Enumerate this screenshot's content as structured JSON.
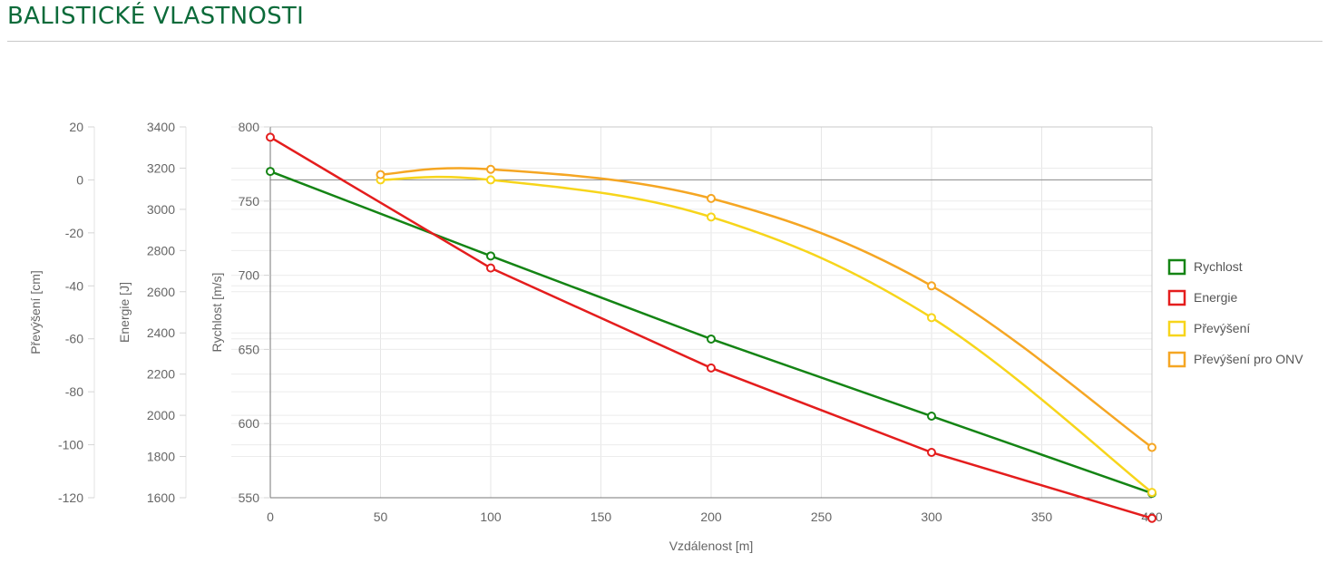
{
  "page": {
    "title": "BALISTICKÉ VLASTNOSTI"
  },
  "chart_data": {
    "type": "line",
    "title": "",
    "xlabel": "Vzdálenost [m]",
    "x_ticks": [
      0,
      50,
      100,
      150,
      200,
      250,
      300,
      350,
      400
    ],
    "xlim": [
      0,
      400
    ],
    "grid": true,
    "legend_position": "right",
    "axes": [
      {
        "id": "rychlost",
        "label": "Rychlost [m/s]",
        "min": 550,
        "max": 800,
        "ticks": [
          550,
          600,
          650,
          700,
          750,
          800
        ]
      },
      {
        "id": "energie",
        "label": "Energie [J]",
        "min": 1600,
        "max": 3400,
        "ticks": [
          1600,
          1800,
          2000,
          2200,
          2400,
          2600,
          2800,
          3000,
          3200,
          3400
        ]
      },
      {
        "id": "prevyseni",
        "label": "Převýšení [cm]",
        "min": -120,
        "max": 20,
        "ticks": [
          -120,
          -100,
          -80,
          -60,
          -40,
          -20,
          0,
          20
        ]
      }
    ],
    "series": [
      {
        "name": "Rychlost",
        "axis": "rychlost",
        "color": "#148414",
        "x": [
          0,
          100,
          200,
          300,
          400
        ],
        "y": [
          770,
          713,
          657,
          605,
          553
        ]
      },
      {
        "name": "Energie",
        "axis": "energie",
        "color": "#e41d1d",
        "x": [
          0,
          100,
          200,
          300,
          400
        ],
        "y": [
          3350,
          2715,
          2230,
          1820,
          1500
        ]
      },
      {
        "name": "Převýšení",
        "axis": "prevyseni",
        "color": "#f7d51b",
        "x": [
          50,
          100,
          200,
          300,
          400
        ],
        "y": [
          0,
          0,
          -14,
          -52,
          -118
        ]
      },
      {
        "name": "Převýšení pro ONV",
        "axis": "prevyseni",
        "color": "#f5a623",
        "x": [
          50,
          100,
          200,
          300,
          400
        ],
        "y": [
          2,
          4,
          -7,
          -40,
          -101
        ]
      }
    ]
  }
}
